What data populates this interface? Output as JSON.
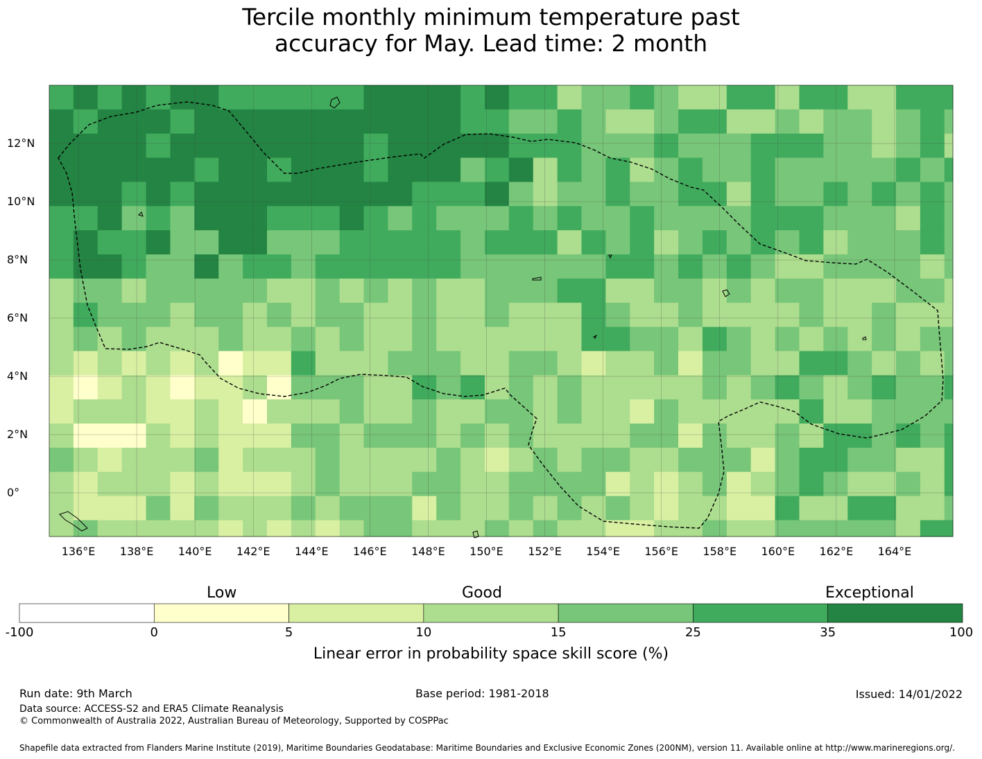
{
  "title": {
    "line1": "Tercile monthly minimum temperature past",
    "line2": "accuracy for May. Lead time: 2 month"
  },
  "map": {
    "lon_labels": [
      "136°E",
      "138°E",
      "140°E",
      "142°E",
      "144°E",
      "146°E",
      "148°E",
      "150°E",
      "152°E",
      "154°E",
      "156°E",
      "158°E",
      "160°E",
      "162°E",
      "164°E"
    ],
    "lat_labels": [
      "12°N",
      "10°N",
      "8°N",
      "6°N",
      "4°N",
      "2°N",
      "0°"
    ],
    "lon_range": [
      135.0,
      166.0
    ],
    "lat_range": [
      -1.5,
      14.0
    ],
    "grid_cell_deg": 0.83
  },
  "colorbar": {
    "category_labels": [
      "Low",
      "Good",
      "Exceptional"
    ],
    "bounds": [
      "-100",
      "0",
      "5",
      "10",
      "15",
      "25",
      "35",
      "100"
    ],
    "colors": [
      "#ffffff",
      "#ffffcc",
      "#d9f0a3",
      "#addd8e",
      "#78c679",
      "#41ab5d",
      "#238443"
    ],
    "axis_title": "Linear error in probability space skill score (%)"
  },
  "footer": {
    "run_date": "Run date: 9th March",
    "base_period": "Base period: 1981-2018",
    "issued": "Issued: 14/01/2022",
    "data_source": "Data source: ACCESS-S2 and ERA5 Climate Reanalysis",
    "copyright": "© Commonwealth of Australia 2022, Australian Bureau of Meteorology, Supported by COSPPac",
    "shapefile_note": "Shapefile data extracted from Flanders Marine Institute (2019), Maritime Boundaries Geodatabase: Maritime Boundaries and Exclusive Economic Zones (200NM), version 11. Available online at http://www.marineregions.org/."
  }
}
